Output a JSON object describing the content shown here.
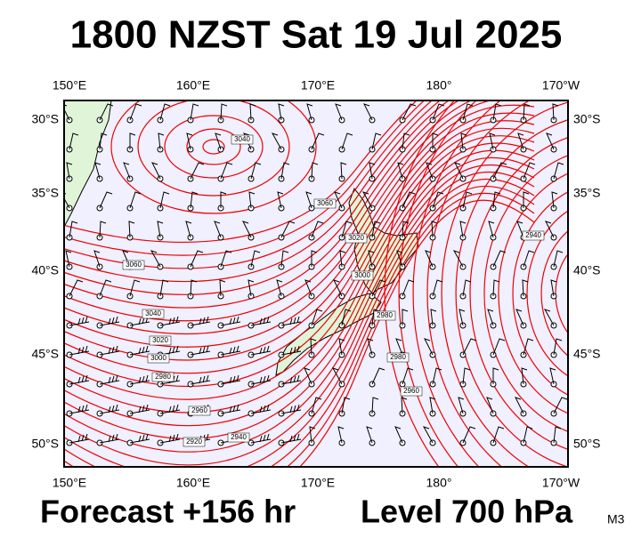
{
  "header": {
    "title": "1800 NZST Sat 19 Jul 2025"
  },
  "map": {
    "lon_labels": [
      "150°E",
      "160°E",
      "170°E",
      "180°",
      "170°W"
    ],
    "lat_labels": [
      "30°S",
      "35°S",
      "40°S",
      "45°S",
      "50°S"
    ],
    "contour_labels": [
      "3040",
      "3060",
      "3020",
      "3060",
      "3040",
      "3020",
      "3000",
      "2980",
      "2960",
      "2940",
      "2920",
      "3000",
      "2980",
      "2980",
      "2960",
      "2940"
    ]
  },
  "footer": {
    "forecast": "Forecast +156 hr",
    "level": "Level 700 hPa",
    "model": "M3"
  }
}
